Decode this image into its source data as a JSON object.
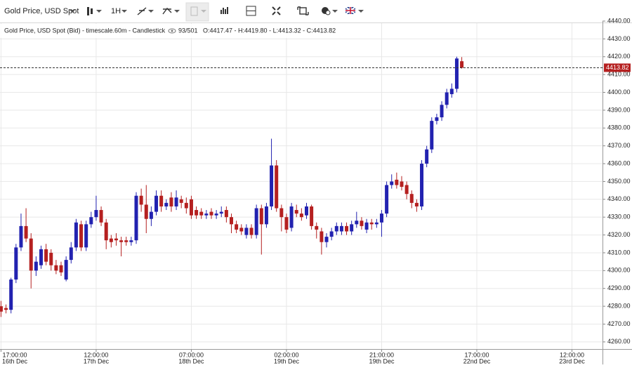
{
  "toolbar": {
    "symbol": "Gold Price, USD Spot",
    "interval": "1H"
  },
  "chart_data": {
    "type": "candlestick",
    "title": "Gold Price, USD Spot (Bid) - timescale.60m - Candlestick",
    "count": "93/501",
    "status": "O:4417.47 - H:4419.80 - L:4413.32 - C:4413.82",
    "up_color": "#2222b0",
    "down_color": "#b52020",
    "grid": true,
    "x": [
      0,
      1,
      2,
      3,
      4,
      5,
      6,
      7,
      8,
      9,
      10,
      11,
      12,
      13,
      14,
      15,
      16,
      17,
      18,
      19,
      20,
      21,
      22,
      23,
      24,
      25,
      26,
      27,
      28,
      29,
      30,
      31,
      32,
      33,
      34,
      35,
      36,
      37,
      38,
      39,
      40,
      41,
      42,
      43,
      44,
      45,
      46,
      47,
      48,
      49,
      50,
      51,
      52,
      53,
      54,
      55,
      56,
      57,
      58,
      59,
      60,
      61,
      62,
      63,
      64,
      65,
      66,
      67,
      68,
      69,
      70,
      71,
      72,
      73,
      74,
      75,
      76,
      77,
      78,
      79,
      80,
      81,
      82,
      83,
      84,
      85,
      86,
      87,
      88,
      89,
      90,
      91,
      92
    ],
    "open": [
      4280,
      4279,
      4278,
      4295,
      4313,
      4325,
      4318,
      4300,
      4303,
      4312,
      4310,
      4303,
      4303,
      4295,
      4306,
      4313,
      4326,
      4313,
      4326,
      4330,
      4334,
      4327,
      4318,
      4318,
      4317,
      4317,
      4316,
      4317,
      4342,
      4337,
      4329,
      4333,
      4342,
      4336,
      4341,
      4336,
      4340,
      4338,
      4340,
      4334,
      4333,
      4331,
      4333,
      4331,
      4332,
      4334,
      4330,
      4326,
      4324,
      4320,
      4324,
      4320,
      4335,
      4326,
      4336,
      4359,
      4335,
      4330,
      4324,
      4334,
      4332,
      4331,
      4336,
      4325,
      4322,
      4316,
      4319,
      4322,
      4322,
      4325,
      4322,
      4326,
      4328,
      4323,
      4327,
      4326,
      4327,
      4332,
      4348,
      4351,
      4350,
      4348,
      4343,
      4338,
      4336,
      4360,
      4368,
      4384,
      4386,
      4393,
      4399,
      4402,
      4417.47
    ],
    "high": [
      4283,
      4281,
      4296,
      4315,
      4332,
      4335,
      4321,
      4308,
      4314,
      4315,
      4312,
      4306,
      4305,
      4308,
      4316,
      4329,
      4328,
      4328,
      4333,
      4342,
      4336,
      4329,
      4320,
      4321,
      4319,
      4319,
      4319,
      4344,
      4346,
      4348,
      4336,
      4345,
      4345,
      4340,
      4344,
      4345,
      4342,
      4341,
      4342,
      4336,
      4335,
      4334,
      4335,
      4334,
      4336,
      4336,
      4332,
      4328,
      4326,
      4326,
      4326,
      4337,
      4337,
      4338,
      4374,
      4362,
      4337,
      4332,
      4338,
      4337,
      4335,
      4338,
      4337,
      4327,
      4324,
      4321,
      4324,
      4327,
      4327,
      4327,
      4328,
      4333,
      4330,
      4329,
      4329,
      4329,
      4334,
      4350,
      4354,
      4355,
      4353,
      4350,
      4345,
      4340,
      4362,
      4370,
      4386,
      4388,
      4395,
      4402,
      4405,
      4420,
      4419.8
    ],
    "low": [
      4274,
      4276,
      4276,
      4293,
      4311,
      4316,
      4290,
      4297,
      4301,
      4303,
      4300,
      4298,
      4297,
      4294,
      4304,
      4311,
      4311,
      4311,
      4324,
      4328,
      4325,
      4312,
      4313,
      4314,
      4308,
      4314,
      4314,
      4315,
      4333,
      4321,
      4325,
      4331,
      4333,
      4334,
      4333,
      4334,
      4335,
      4332,
      4329,
      4329,
      4329,
      4329,
      4329,
      4329,
      4330,
      4327,
      4321,
      4321,
      4320,
      4318,
      4318,
      4318,
      4309,
      4324,
      4334,
      4333,
      4322,
      4321,
      4322,
      4330,
      4328,
      4329,
      4323,
      4318,
      4309,
      4313,
      4317,
      4320,
      4320,
      4320,
      4320,
      4324,
      4323,
      4321,
      4323,
      4324,
      4319,
      4330,
      4346,
      4346,
      4345,
      4340,
      4335,
      4333,
      4334,
      4358,
      4366,
      4382,
      4384,
      4391,
      4397,
      4400,
      4413.32
    ],
    "close": [
      4277,
      4278,
      4295,
      4313,
      4325,
      4318,
      4300,
      4305,
      4312,
      4305,
      4303,
      4300,
      4299,
      4306,
      4313,
      4327,
      4313,
      4326,
      4330,
      4334,
      4327,
      4317,
      4316,
      4317,
      4316,
      4316,
      4317,
      4342,
      4337,
      4329,
      4333,
      4342,
      4336,
      4338,
      4336,
      4341,
      4338,
      4335,
      4331,
      4331,
      4331,
      4332,
      4331,
      4332,
      4333,
      4330,
      4326,
      4323,
      4322,
      4324,
      4320,
      4335,
      4326,
      4336,
      4359,
      4335,
      4330,
      4323,
      4336,
      4332,
      4330,
      4336,
      4325,
      4323,
      4316,
      4319,
      4322,
      4325,
      4325,
      4322,
      4326,
      4328,
      4325,
      4327,
      4326,
      4327,
      4332,
      4348,
      4350,
      4348,
      4347,
      4343,
      4338,
      4336,
      4360,
      4368,
      4384,
      4386,
      4393,
      4400,
      4402,
      4419,
      4413.82
    ],
    "xlim": [
      -0.2,
      120.1
    ],
    "xticks": [
      {
        "value": 0,
        "label": "17:00:00",
        "date": "16th Dec"
      },
      {
        "value": 19,
        "label": "12:00:00",
        "date": "17th Dec"
      },
      {
        "value": 38,
        "label": "07:00:00",
        "date": "18th Dec"
      },
      {
        "value": 57,
        "label": "02:00:00",
        "date": "19th Dec"
      },
      {
        "value": 76,
        "label": "21:00:00",
        "date": "19th Dec"
      },
      {
        "value": 95,
        "label": "17:00:00",
        "date": "22nd Dec"
      },
      {
        "value": 114,
        "label": "12:00:00",
        "date": "23rd Dec"
      }
    ],
    "ylim": [
      4256,
      4440
    ],
    "yticks": [
      {
        "value": 4260,
        "label": "4260.00"
      },
      {
        "value": 4270,
        "label": "4270.00"
      },
      {
        "value": 4280,
        "label": "4280.00"
      },
      {
        "value": 4290,
        "label": "4290.00"
      },
      {
        "value": 4300,
        "label": "4300.00"
      },
      {
        "value": 4310,
        "label": "4310.00"
      },
      {
        "value": 4320,
        "label": "4320.00"
      },
      {
        "value": 4330,
        "label": "4330.00"
      },
      {
        "value": 4340,
        "label": "4340.00"
      },
      {
        "value": 4350,
        "label": "4350.00"
      },
      {
        "value": 4360,
        "label": "4360.00"
      },
      {
        "value": 4370,
        "label": "4370.00"
      },
      {
        "value": 4380,
        "label": "4380.00"
      },
      {
        "value": 4390,
        "label": "4390.00"
      },
      {
        "value": 4400,
        "label": "4400.00"
      },
      {
        "value": 4410,
        "label": "4410.00"
      },
      {
        "value": 4420,
        "label": "4420.00"
      },
      {
        "value": 4430,
        "label": "4430.00"
      },
      {
        "value": 4440,
        "label": "4440.00"
      }
    ]
  }
}
